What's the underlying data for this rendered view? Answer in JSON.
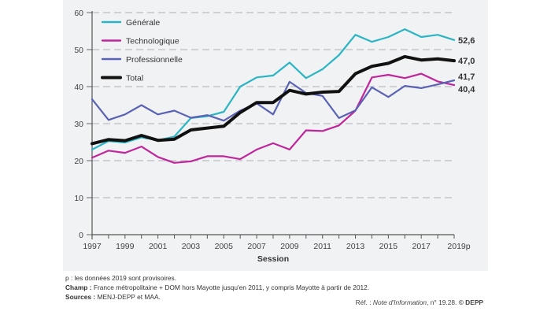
{
  "chart_data": {
    "type": "line",
    "title": "",
    "xlabel": "Session",
    "ylabel": "",
    "ylim": [
      0,
      60
    ],
    "yticks": [
      0,
      10,
      20,
      30,
      40,
      50,
      60
    ],
    "x": [
      1997,
      1998,
      1999,
      2000,
      2001,
      2002,
      2003,
      2004,
      2005,
      2006,
      2007,
      2008,
      2009,
      2010,
      2011,
      2012,
      2013,
      2014,
      2015,
      2016,
      2017,
      2018,
      2019
    ],
    "xtick_labels": [
      "1997",
      "1999",
      "2001",
      "2003",
      "2005",
      "2007",
      "2009",
      "2011",
      "2013",
      "2015",
      "2017",
      "2019p"
    ],
    "xtick_values": [
      1997,
      1999,
      2001,
      2003,
      2005,
      2007,
      2009,
      2011,
      2013,
      2015,
      2017,
      2019
    ],
    "grid": "horizontal dashed",
    "legend_position": "top-left",
    "series": [
      {
        "name": "Générale",
        "color": "#2bb5c4",
        "values": [
          23.0,
          25.3,
          24.9,
          26.3,
          25.5,
          26.5,
          31.5,
          32.0,
          33.2,
          40.0,
          42.5,
          43.0,
          46.5,
          42.3,
          44.7,
          48.5,
          54.0,
          52.1,
          53.4,
          55.5,
          53.4,
          54.0,
          52.6
        ],
        "end_label": "52,6"
      },
      {
        "name": "Technologique",
        "color": "#c0269b",
        "values": [
          20.8,
          22.7,
          22.1,
          23.8,
          21.0,
          19.4,
          19.8,
          21.2,
          21.2,
          20.4,
          23.0,
          24.7,
          23.0,
          28.2,
          28.0,
          29.5,
          33.5,
          42.5,
          43.2,
          42.3,
          43.5,
          41.4,
          40.4
        ],
        "end_label": "40,4"
      },
      {
        "name": "Professionnelle",
        "color": "#5a62b3",
        "values": [
          36.6,
          31.0,
          32.5,
          35.0,
          32.5,
          33.5,
          31.6,
          32.3,
          30.8,
          33.5,
          35.5,
          32.5,
          41.3,
          38.3,
          37.5,
          31.5,
          33.6,
          39.8,
          37.2,
          40.2,
          39.6,
          40.6,
          41.7
        ],
        "end_label": "41,7"
      },
      {
        "name": "Total",
        "color": "#111111",
        "values": [
          24.6,
          25.7,
          25.4,
          26.8,
          25.5,
          25.8,
          28.3,
          28.8,
          29.3,
          33.0,
          35.7,
          35.7,
          39.0,
          38.0,
          38.5,
          38.7,
          43.5,
          45.5,
          46.3,
          48.1,
          47.2,
          47.5,
          47.0
        ],
        "end_label": "47,0"
      }
    ]
  },
  "notes": {
    "provisional": "p : les données 2019 sont provisoires.",
    "champ_label": "Champ :",
    "champ_text": " France métropolitaine + DOM hors Mayotte jusqu'en 2011, y compris Mayotte à partir de 2012.",
    "sources_label": "Sources :",
    "sources_text": " MENJ-DEPP et MAA.",
    "ref_prefix": "Réf. : ",
    "ref_title": "Note d'Information",
    "ref_suffix": ", n° 19.28. ",
    "ref_copyright": "© DEPP"
  }
}
